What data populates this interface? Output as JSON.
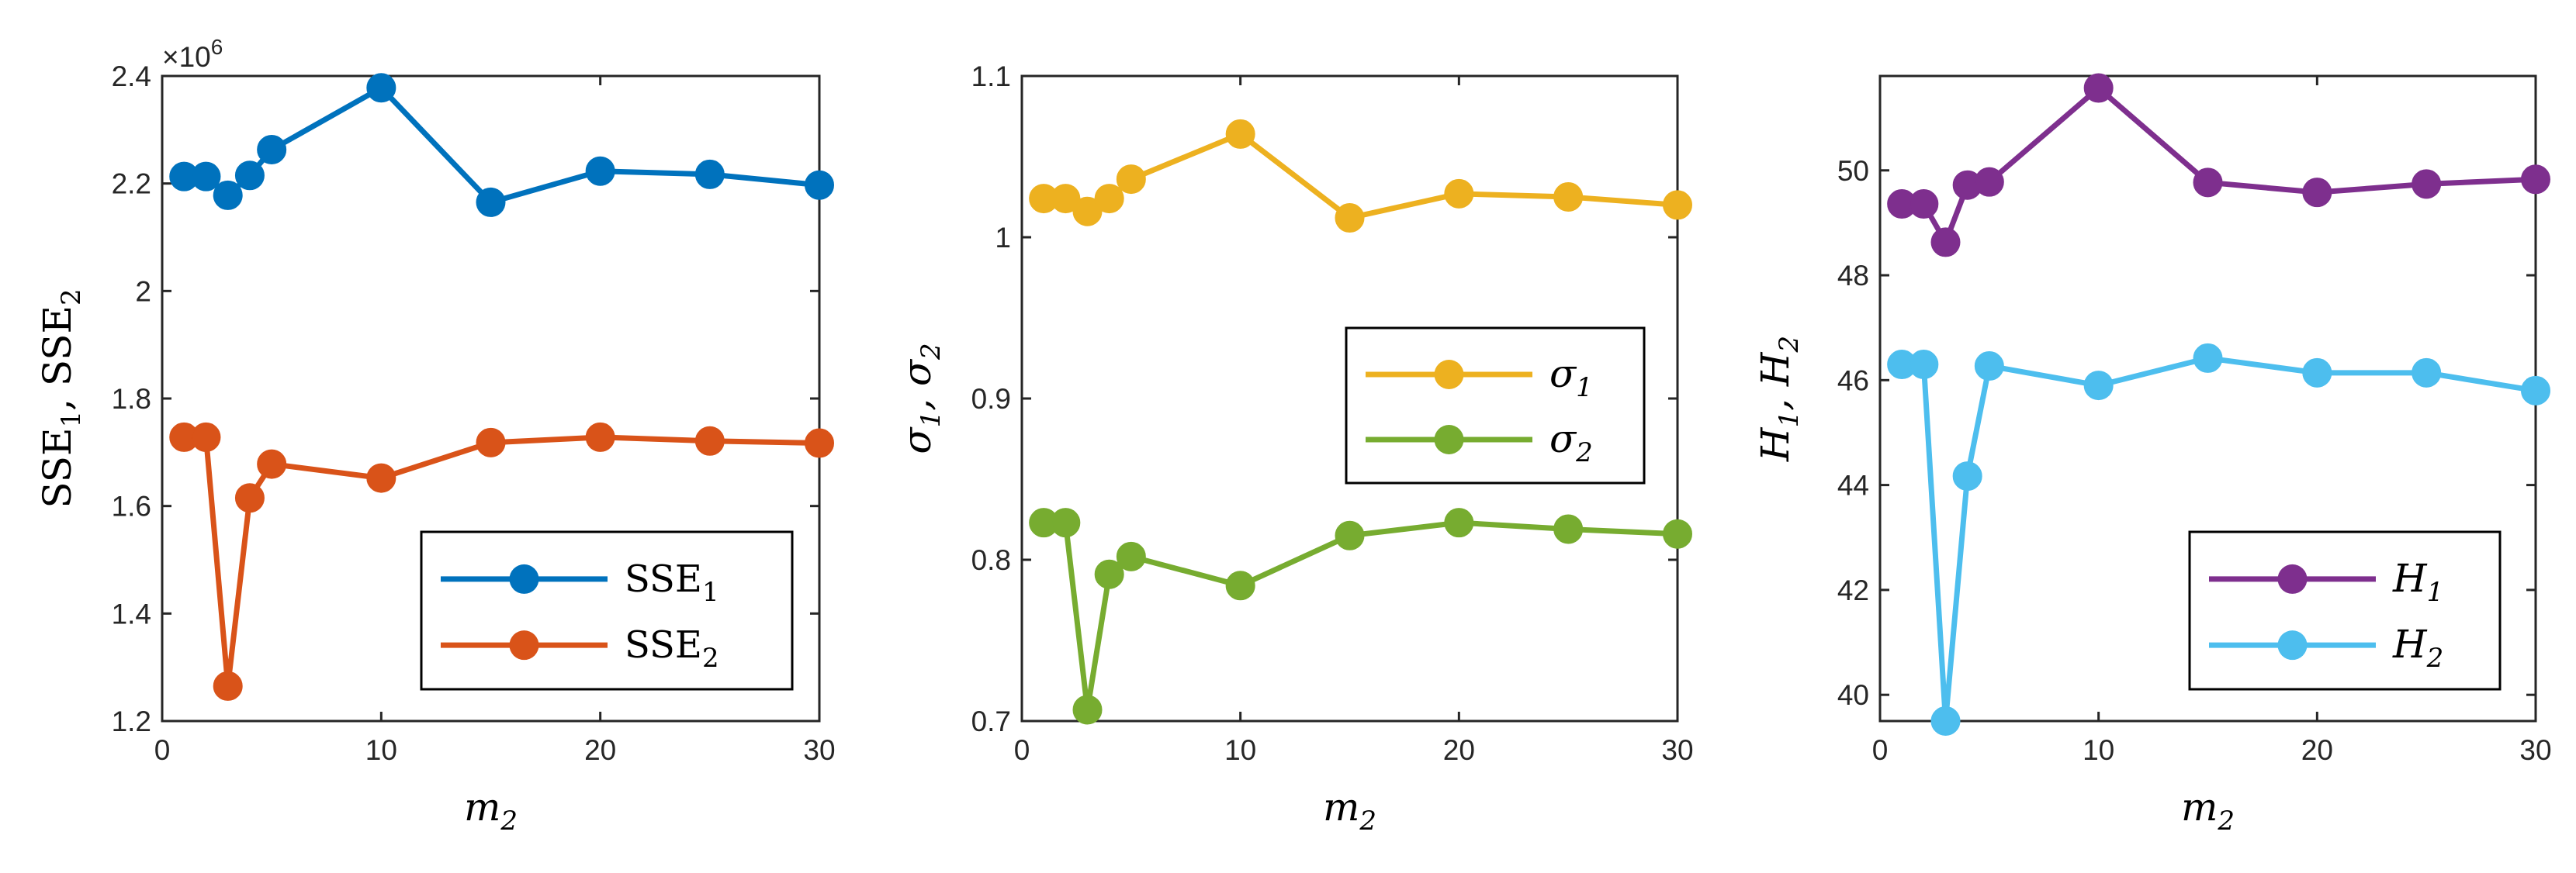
{
  "chart_data": [
    {
      "type": "line",
      "x": [
        1,
        2,
        3,
        4,
        5,
        10,
        15,
        20,
        25,
        30
      ],
      "xlabel": "m2",
      "ylabel": "SSE1,  SSE2",
      "xlim": [
        0,
        30
      ],
      "ylim": [
        1.2,
        2.4
      ],
      "xticks": [
        0,
        10,
        20,
        30
      ],
      "yticks": [
        1.2,
        1.4,
        1.6,
        1.8,
        2.0,
        2.2,
        2.4
      ],
      "yticklabels": [
        "1.2",
        "1.4",
        "1.6",
        "1.8",
        "2",
        "2.2",
        "2.4"
      ],
      "y_multiplier": "×10^6",
      "legend_position": "bottom-right",
      "series": [
        {
          "name": "SSE1",
          "color": "#0072BD",
          "values": [
            2.213,
            2.213,
            2.178,
            2.215,
            2.263,
            2.378,
            2.165,
            2.223,
            2.217,
            2.197
          ]
        },
        {
          "name": "SSE2",
          "color": "#D95319",
          "values": [
            1.728,
            1.728,
            1.265,
            1.615,
            1.678,
            1.652,
            1.718,
            1.728,
            1.721,
            1.717
          ]
        }
      ]
    },
    {
      "type": "line",
      "x": [
        1,
        2,
        3,
        4,
        5,
        10,
        15,
        20,
        25,
        30
      ],
      "xlabel": "m2",
      "ylabel": "σ1,  σ2",
      "xlim": [
        0,
        30
      ],
      "ylim": [
        0.7,
        1.1
      ],
      "xticks": [
        0,
        10,
        20,
        30
      ],
      "yticks": [
        0.7,
        0.8,
        0.9,
        1.0,
        1.1
      ],
      "yticklabels": [
        "0.7",
        "0.8",
        "0.9",
        "1",
        "1.1"
      ],
      "legend_position": "center-right",
      "series": [
        {
          "name": "σ1",
          "color": "#EDB120",
          "values": [
            1.024,
            1.024,
            1.016,
            1.024,
            1.036,
            1.064,
            1.012,
            1.027,
            1.025,
            1.02
          ]
        },
        {
          "name": "σ2",
          "color": "#77AC30",
          "values": [
            0.823,
            0.823,
            0.707,
            0.791,
            0.802,
            0.784,
            0.815,
            0.823,
            0.819,
            0.816
          ]
        }
      ]
    },
    {
      "type": "line",
      "x": [
        1,
        2,
        3,
        4,
        5,
        10,
        15,
        20,
        25,
        30
      ],
      "xlabel": "m2",
      "ylabel": "H1,  H2",
      "xlim": [
        0,
        30
      ],
      "ylim": [
        39.5,
        51.8
      ],
      "xticks": [
        0,
        10,
        20,
        30
      ],
      "yticks": [
        40,
        42,
        44,
        46,
        48,
        50
      ],
      "yticklabels": [
        "40",
        "42",
        "44",
        "46",
        "48",
        "50"
      ],
      "legend_position": "bottom-right",
      "series": [
        {
          "name": "H1",
          "color": "#7E2F8E",
          "values": [
            49.36,
            49.36,
            48.63,
            49.72,
            49.78,
            51.57,
            49.77,
            49.58,
            49.74,
            49.83
          ]
        },
        {
          "name": "H2",
          "color": "#4DBEEE",
          "values": [
            46.3,
            46.3,
            39.5,
            44.17,
            46.27,
            45.9,
            46.42,
            46.14,
            46.14,
            45.8
          ]
        }
      ]
    }
  ]
}
